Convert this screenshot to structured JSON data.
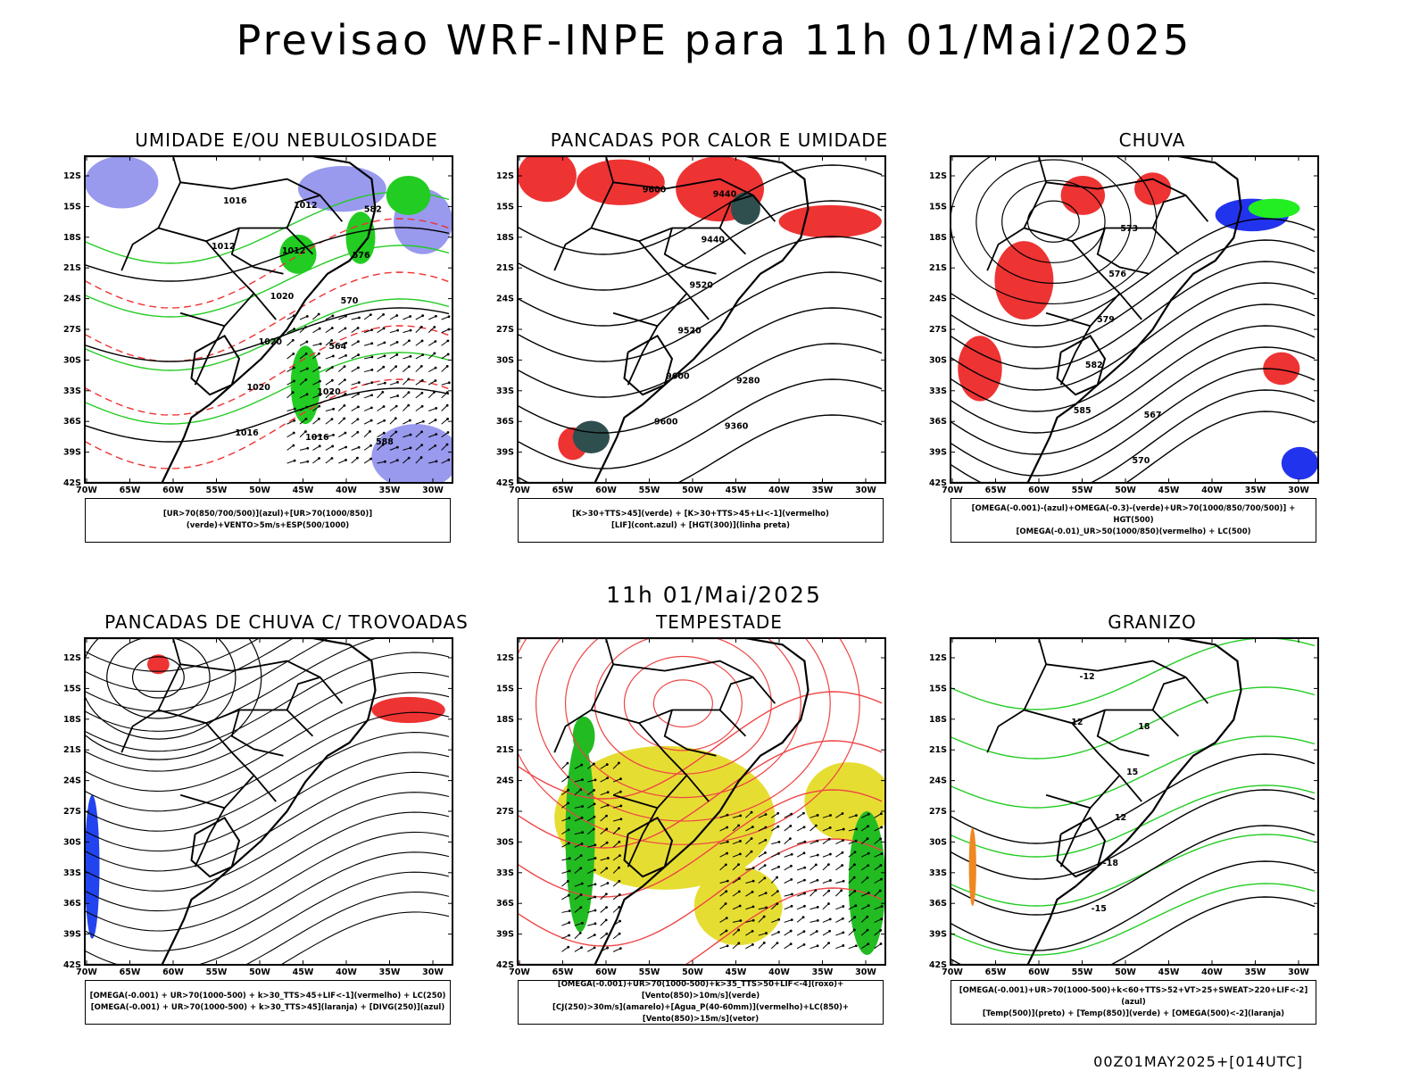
{
  "title": "Previsao WRF-INPE  para 11h 01/Mai/2025",
  "subtitle": "11h 01/Mai/2025",
  "footer": "00Z01MAY2025+[014UTC]",
  "lat_labels": [
    "12S",
    "15S",
    "18S",
    "21S",
    "24S",
    "27S",
    "30S",
    "33S",
    "36S",
    "39S",
    "42S"
  ],
  "lon_labels": [
    "70W",
    "65W",
    "60W",
    "55W",
    "50W",
    "45W",
    "40W",
    "35W",
    "30W"
  ],
  "panels": [
    {
      "title": "UMIDADE E/OU NEBULOSIDADE",
      "legend": [
        "[UR>70(850/700/500)](azul)+[UR>70(1000/850)](verde)+VENTO>5m/s+ESP(500/1000)"
      ],
      "contour_labels": [
        "1012",
        "1016",
        "1016",
        "1020",
        "1020",
        "1020",
        "1012",
        "1012",
        "1016",
        "1020",
        "564",
        "570",
        "576",
        "582",
        "588"
      ],
      "colors": {
        "blue": "#9999ee",
        "green": "#22cc22",
        "red": "#ee3333"
      }
    },
    {
      "title": "PANCADAS POR CALOR E UMIDADE",
      "legend": [
        "[K>30+TTS>45](verde) + [K>30+TTS>45+LI<-1](vermelho)",
        "[LIF](cont.azul) + [HGT(300)](linha preta)"
      ],
      "contour_labels": [
        "9600",
        "9600",
        "9600",
        "9520",
        "9520",
        "9440",
        "9440",
        "9360",
        "9280"
      ],
      "colors": {
        "red": "#ee3333",
        "darkgreen": "#2f4f4f",
        "blue": "#3344ee"
      }
    },
    {
      "title": "CHUVA",
      "legend": [
        "[OMEGA(-0.001)-(azul)+OMEGA(-0.3)-(verde)+UR>70(1000/850/700/500)] + HGT(500)",
        "[OMEGA(-0.01)_UR>50(1000/850)(vermelho) + LC(500)"
      ],
      "contour_labels": [
        "585",
        "582",
        "579",
        "576",
        "573",
        "570",
        "567"
      ],
      "colors": {
        "red": "#ee3333",
        "blue": "#2233ee",
        "green": "#22ee22"
      }
    },
    {
      "title": "PANCADAS DE CHUVA C/ TROVOADAS",
      "legend": [
        "[OMEGA(-0.001) + UR>70(1000-500) + k>30_TTS>45+LIF<-1](vermelho) + LC(250)",
        "[OMEGA(-0.001) + UR>70(1000-500) + k>30_TTS>45](laranja) + [DIVG(250)](azul)"
      ],
      "contour_labels": [],
      "colors": {
        "red": "#ee3333",
        "orange": "#ee8822",
        "blue": "#2244ee"
      }
    },
    {
      "title": "TEMPESTADE",
      "legend": [
        "[OMEGA(-0.001)+UR>70(1000-500)+k>35_TTS>50+LIF<-4](roxo)+[Vento(850)>10m/s](verde)",
        "[CJ(250)>30m/s](amarelo)+[Agua_P(40-60mm)](vermelho)+LC(850)+[Vento(850)>15m/s](vetor)"
      ],
      "contour_labels": [],
      "colors": {
        "yellow": "#e6dd33",
        "green": "#22bb22",
        "red": "#ee4444"
      }
    },
    {
      "title": "GRANIZO",
      "legend": [
        "[OMEGA(-0.001)+UR>70(1000-500)+k<60+TTS>52+VT>25+SWEAT>220+LIF<-2](azul)",
        "[Temp(500)](preto) + [Temp(850)](verde) + [OMEGA(500)<-2](laranja)"
      ],
      "contour_labels": [
        "-12",
        "-12",
        "-15",
        "-18",
        "12",
        "15",
        "18"
      ],
      "colors": {
        "green": "#22cc22",
        "orange": "#ee8822"
      }
    }
  ]
}
